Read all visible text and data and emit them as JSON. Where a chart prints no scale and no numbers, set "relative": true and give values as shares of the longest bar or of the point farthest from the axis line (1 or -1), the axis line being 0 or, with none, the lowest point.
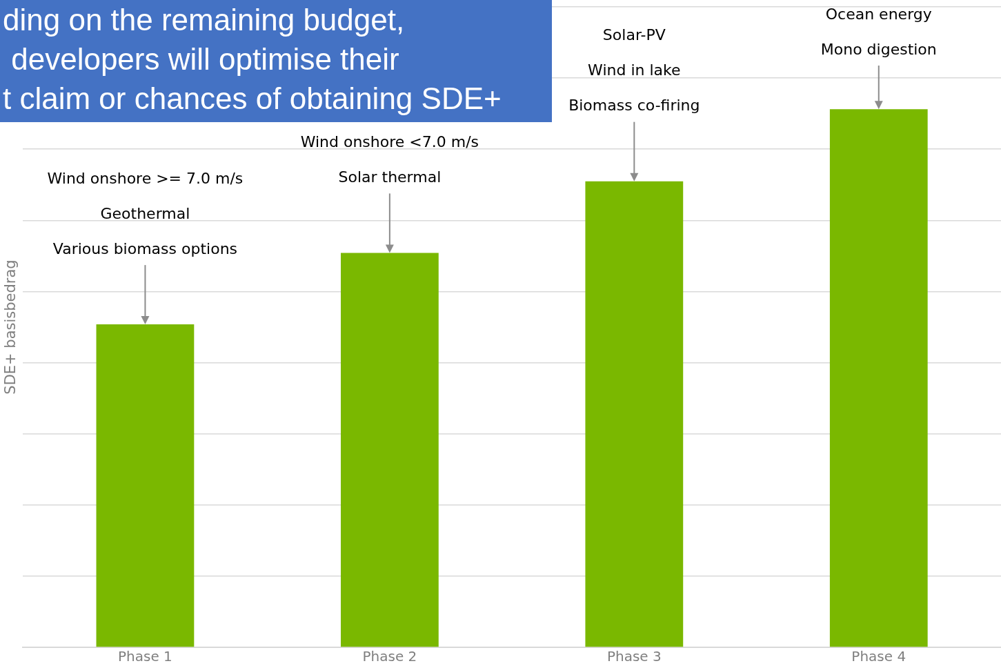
{
  "chart_data": {
    "type": "bar",
    "relative": true,
    "ylabel": "SDE+ basisbedrag",
    "categories": [
      "Phase 1",
      "Phase 2",
      "Phase 3",
      "Phase 4"
    ],
    "values": [
      0.6,
      0.733,
      0.866,
      1
    ],
    "color": "#7ab800",
    "grid": "y",
    "tick_labels": "x",
    "annotations": [
      "ding on the remaining budget,\n developers will optimise their\nt claim or chances of obtaining SDE+",
      "Wind onshore >= 7.0 m/s\nGeothermal\nVarious biomass options",
      "Wind onshore <7.0 m/s\nSolar thermal",
      "Solar-PV\nWind in lake\nBiomass co-firing",
      "Ocean energy\nMono digestion"
    ]
  }
}
